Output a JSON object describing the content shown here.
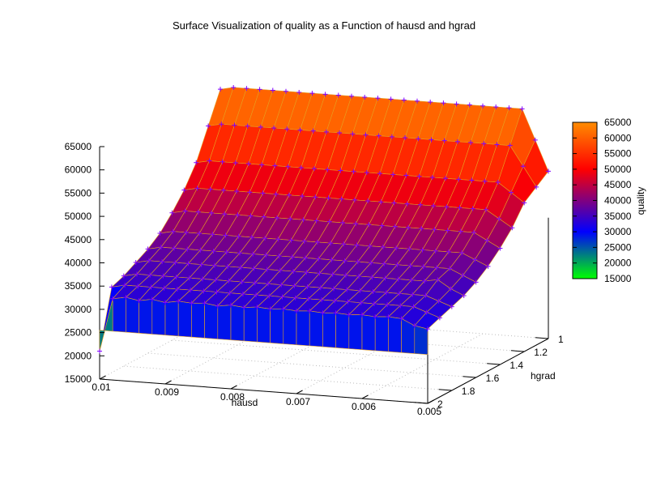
{
  "chart_data": {
    "type": "surface",
    "title": "Surface Visualization of quality as a Function of hausd and hgrad",
    "xlabel": "hausd",
    "ylabel": "hgrad",
    "zlabel": "quality",
    "xlim": [
      0.005,
      0.01
    ],
    "ylim": [
      1,
      2
    ],
    "zlim": [
      15000,
      65000
    ],
    "x_ticks": [
      "0.01",
      "0.009",
      "0.008",
      "0.007",
      "0.006",
      "0.005"
    ],
    "y_ticks": [
      "1",
      "1.2",
      "1.4",
      "1.6",
      "1.8",
      "2"
    ],
    "z_ticks": [
      "15000",
      "20000",
      "25000",
      "30000",
      "35000",
      "40000",
      "45000",
      "50000",
      "55000",
      "60000",
      "65000"
    ],
    "colorbar": {
      "label": "quality",
      "range": [
        15000,
        65000
      ],
      "ticks": [
        "15000",
        "20000",
        "25000",
        "30000",
        "35000",
        "40000",
        "45000",
        "50000",
        "55000",
        "60000",
        "65000"
      ],
      "colors": [
        "#00ff00",
        "#0000ff",
        "#800080",
        "#ff0000",
        "#ff8c00"
      ]
    },
    "grid": true,
    "point_marker": "+",
    "marker_color": "#8000ff",
    "mesh_color": "#e6a020",
    "hausd_values": [
      0.01,
      0.0098,
      0.0096,
      0.0094,
      0.0092,
      0.009,
      0.0088,
      0.0086,
      0.0084,
      0.0082,
      0.008,
      0.0078,
      0.0076,
      0.0074,
      0.0072,
      0.007,
      0.0068,
      0.0066,
      0.0064,
      0.0062,
      0.006,
      0.0058,
      0.0056,
      0.0054,
      0.0052,
      0.005
    ],
    "hgrad_values": [
      1,
      1.1,
      1.2,
      1.3,
      1.4,
      1.5,
      1.6,
      1.7,
      1.8,
      1.9,
      2
    ],
    "quality_by_hgrad": [
      {
        "hgrad": 1.0,
        "quality": 64000
      },
      {
        "hgrad": 1.1,
        "quality": 57500
      },
      {
        "hgrad": 1.2,
        "quality": 51000
      },
      {
        "hgrad": 1.3,
        "quality": 46500
      },
      {
        "hgrad": 1.4,
        "quality": 43000
      },
      {
        "hgrad": 1.5,
        "quality": 40000
      },
      {
        "hgrad": 1.6,
        "quality": 38000
      },
      {
        "hgrad": 1.7,
        "quality": 36500
      },
      {
        "hgrad": 1.8,
        "quality": 35000
      },
      {
        "hgrad": 1.9,
        "quality": 34000
      },
      {
        "hgrad": 2.0,
        "quality": 33000
      }
    ],
    "edge_hausd_0_005": [
      {
        "hgrad": 1.0,
        "quality": 51000
      },
      {
        "hgrad": 1.1,
        "quality": 49000
      },
      {
        "hgrad": 1.2,
        "quality": 47000
      },
      {
        "hgrad": 1.3,
        "quality": 43000
      },
      {
        "hgrad": 1.4,
        "quality": 40000
      },
      {
        "hgrad": 1.5,
        "quality": 37500
      },
      {
        "hgrad": 1.6,
        "quality": 35500
      },
      {
        "hgrad": 1.7,
        "quality": 34000
      },
      {
        "hgrad": 1.8,
        "quality": 33000
      },
      {
        "hgrad": 1.9,
        "quality": 32000
      },
      {
        "hgrad": 2.0,
        "quality": 31000
      }
    ],
    "edge_hgrad_2": [
      {
        "hausd": 0.01,
        "quality": 21000
      },
      {
        "hausd": 0.0098,
        "quality": 32500
      },
      {
        "hausd": 0.0096,
        "quality": 33000
      },
      {
        "hausd": 0.0094,
        "quality": 32500
      },
      {
        "hausd": 0.0092,
        "quality": 33000
      },
      {
        "hausd": 0.009,
        "quality": 32500
      },
      {
        "hausd": 0.0088,
        "quality": 33000
      },
      {
        "hausd": 0.0086,
        "quality": 32800
      },
      {
        "hausd": 0.0084,
        "quality": 33000
      },
      {
        "hausd": 0.0082,
        "quality": 32600
      },
      {
        "hausd": 0.008,
        "quality": 33000
      },
      {
        "hausd": 0.0078,
        "quality": 32700
      },
      {
        "hausd": 0.0076,
        "quality": 33000
      },
      {
        "hausd": 0.0074,
        "quality": 32800
      },
      {
        "hausd": 0.0072,
        "quality": 33000
      },
      {
        "hausd": 0.007,
        "quality": 32800
      },
      {
        "hausd": 0.0068,
        "quality": 33000
      },
      {
        "hausd": 0.0066,
        "quality": 32800
      },
      {
        "hausd": 0.0064,
        "quality": 33000
      },
      {
        "hausd": 0.0062,
        "quality": 32800
      },
      {
        "hausd": 0.006,
        "quality": 33000
      },
      {
        "hausd": 0.0058,
        "quality": 32800
      },
      {
        "hausd": 0.0056,
        "quality": 33000
      },
      {
        "hausd": 0.0054,
        "quality": 32800
      },
      {
        "hausd": 0.0052,
        "quality": 31500
      },
      {
        "hausd": 0.005,
        "quality": 31000
      }
    ],
    "spike": {
      "hausd": 0.0054,
      "hgrad": 1.65,
      "quality": 37000
    }
  }
}
